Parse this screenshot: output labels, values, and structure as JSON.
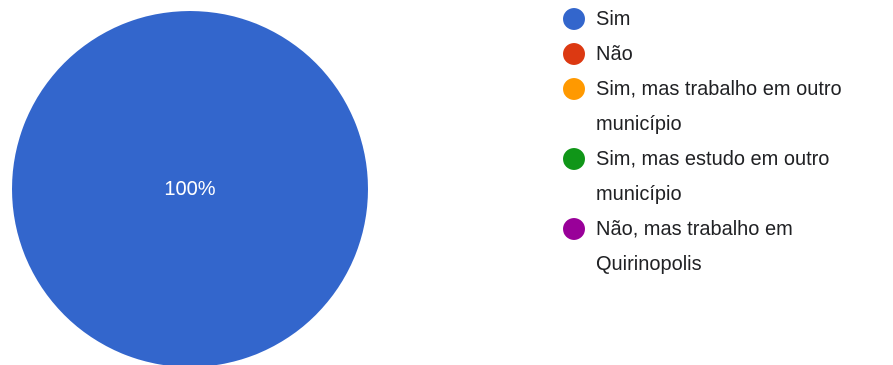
{
  "chart_data": {
    "type": "pie",
    "title": "",
    "legend_position": "right",
    "slices": [
      {
        "label": "Sim",
        "value": 100,
        "color": "#3366cc"
      },
      {
        "label": "Não",
        "value": 0,
        "color": "#dc3912"
      },
      {
        "label": "Sim, mas trabalho em outro município",
        "value": 0,
        "color": "#ff9900"
      },
      {
        "label": "Sim, mas estudo em outro município",
        "value": 0,
        "color": "#109618"
      },
      {
        "label": "Não, mas trabalho em Quirinopolis",
        "value": 0,
        "color": "#990099"
      }
    ],
    "data_labels": [
      "100%"
    ],
    "legend_lines": [
      [
        "Sim"
      ],
      [
        "Não"
      ],
      [
        "Sim, mas trabalho em outro",
        "município"
      ],
      [
        "Sim, mas estudo em outro",
        "município"
      ],
      [
        "Não, mas trabalho em",
        "Quirinopolis"
      ]
    ]
  }
}
